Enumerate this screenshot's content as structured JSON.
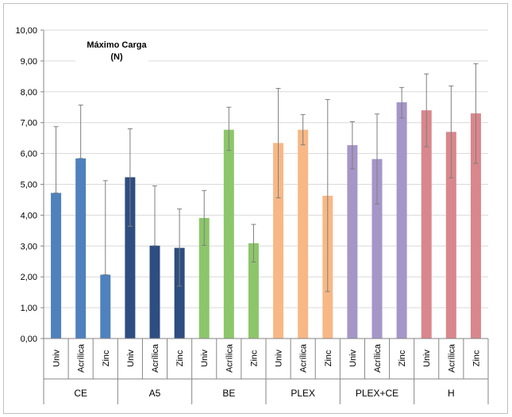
{
  "chart_data": {
    "type": "bar",
    "title_lines": [
      "Máximo Carga",
      "(N)"
    ],
    "ylim": [
      0,
      10
    ],
    "y_ticks": [
      "0,00",
      "1,00",
      "2,00",
      "3,00",
      "4,00",
      "5,00",
      "6,00",
      "7,00",
      "8,00",
      "9,00",
      "10,00"
    ],
    "grid": true,
    "groups": [
      {
        "name": "CE",
        "color": "#4f81bd",
        "bars": [
          {
            "label": "Univ",
            "value": 4.72,
            "err_low": 4.72,
            "err_high": 6.87
          },
          {
            "label": "Acrílica",
            "value": 5.84,
            "err_low": 5.84,
            "err_high": 7.57
          },
          {
            "label": "Zinc",
            "value": 2.07,
            "err_low": 2.07,
            "err_high": 5.12
          }
        ]
      },
      {
        "name": "A5",
        "color": "#2e4d80",
        "bars": [
          {
            "label": "Univ",
            "value": 5.23,
            "err_low": 3.64,
            "err_high": 6.8
          },
          {
            "label": "Acrílica",
            "value": 3.01,
            "err_low": 3.01,
            "err_high": 4.95
          },
          {
            "label": "Zinc",
            "value": 2.94,
            "err_low": 1.7,
            "err_high": 4.2
          }
        ]
      },
      {
        "name": "BE",
        "color": "#8dc66a",
        "bars": [
          {
            "label": "Univ",
            "value": 3.91,
            "err_low": 3.02,
            "err_high": 4.8
          },
          {
            "label": "Acrílica",
            "value": 6.77,
            "err_low": 6.1,
            "err_high": 7.5
          },
          {
            "label": "Zinc",
            "value": 3.09,
            "err_low": 2.48,
            "err_high": 3.7
          }
        ]
      },
      {
        "name": "PLEX",
        "color": "#f8b886",
        "bars": [
          {
            "label": "Univ",
            "value": 6.34,
            "err_low": 4.56,
            "err_high": 8.11
          },
          {
            "label": "Acrílica",
            "value": 6.77,
            "err_low": 6.28,
            "err_high": 7.26
          },
          {
            "label": "Zinc",
            "value": 4.63,
            "err_low": 1.52,
            "err_high": 7.75
          }
        ]
      },
      {
        "name": "PLEX+CE",
        "color": "#a596c8",
        "bars": [
          {
            "label": "Univ",
            "value": 6.27,
            "err_low": 5.5,
            "err_high": 7.03
          },
          {
            "label": "Acrílica",
            "value": 5.82,
            "err_low": 4.36,
            "err_high": 7.28
          },
          {
            "label": "Zinc",
            "value": 7.66,
            "err_low": 7.15,
            "err_high": 8.14
          }
        ]
      },
      {
        "name": "H",
        "color": "#d9878c",
        "bars": [
          {
            "label": "Univ",
            "value": 7.4,
            "err_low": 6.22,
            "err_high": 8.58
          },
          {
            "label": "Acrílica",
            "value": 6.7,
            "err_low": 5.21,
            "err_high": 8.19
          },
          {
            "label": "Zinc",
            "value": 7.3,
            "err_low": 5.68,
            "err_high": 8.91
          }
        ]
      }
    ]
  }
}
